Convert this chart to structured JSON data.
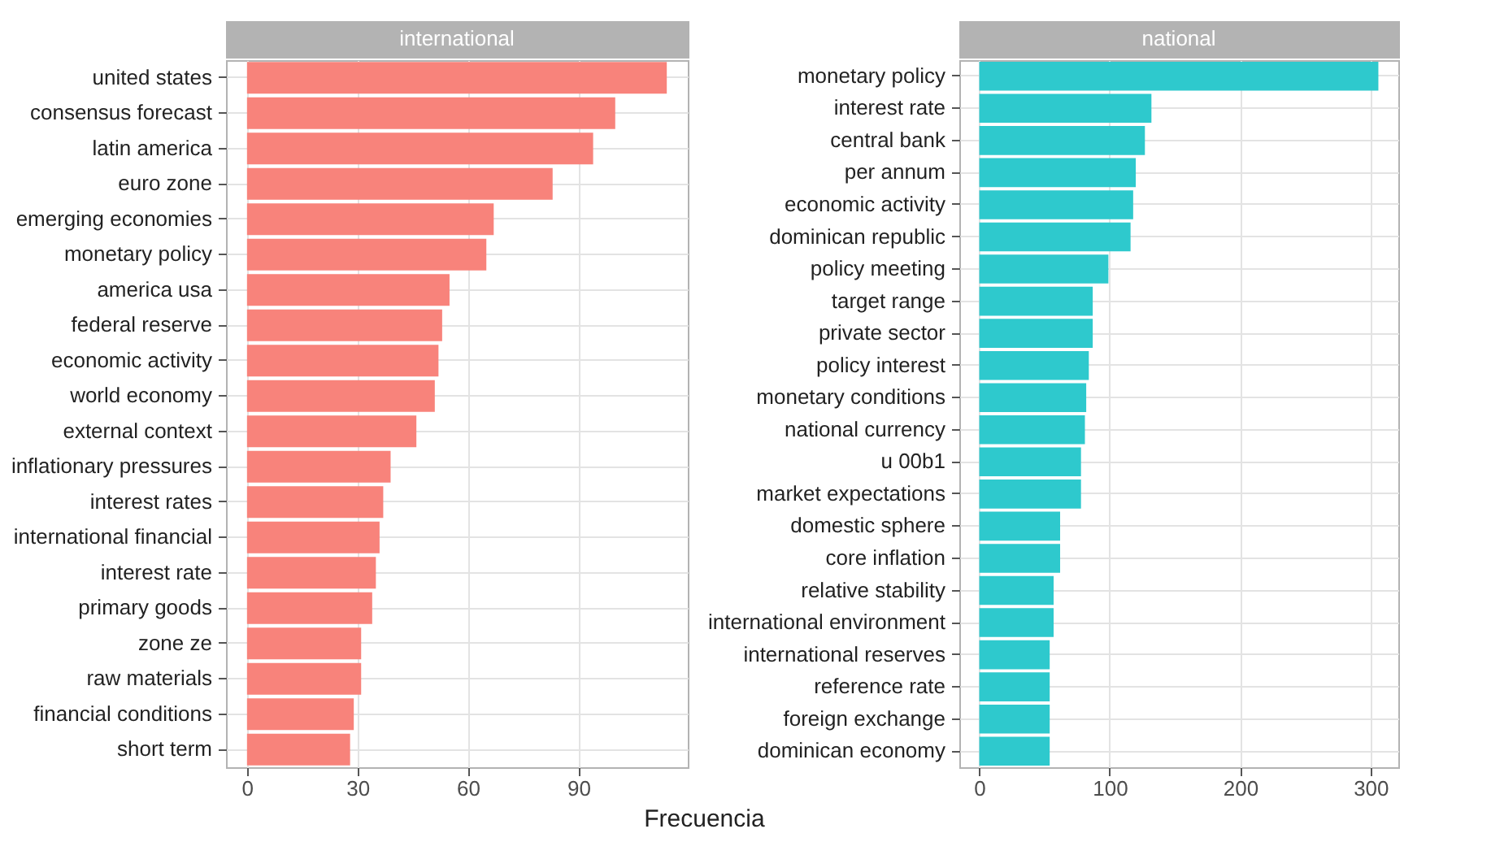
{
  "chart_data": [
    {
      "type": "bar",
      "orientation": "horizontal",
      "title": "international",
      "xlabel": "Frecuencia",
      "categories": [
        "united states",
        "consensus forecast",
        "latin america",
        "euro zone",
        "emerging economies",
        "monetary policy",
        "america usa",
        "federal reserve",
        "economic activity",
        "world economy",
        "external context",
        "inflationary pressures",
        "interest rates",
        "international financial",
        "interest rate",
        "primary goods",
        "zone ze",
        "raw materials",
        "financial conditions",
        "short term"
      ],
      "values": [
        114,
        100,
        94,
        83,
        67,
        65,
        55,
        53,
        52,
        51,
        46,
        39,
        37,
        36,
        35,
        34,
        31,
        31,
        29,
        28
      ],
      "color": "#f8837b",
      "xlim": [
        -5.7,
        119.7
      ],
      "xticks": [
        0,
        30,
        60,
        90
      ],
      "grid": true
    },
    {
      "type": "bar",
      "orientation": "horizontal",
      "title": "national",
      "categories": [
        "monetary policy",
        "interest rate",
        "central bank",
        "per annum",
        "economic activity",
        "dominican republic",
        "policy meeting",
        "target range",
        "private sector",
        "policy interest",
        "monetary conditions",
        "national currency",
        "u 00b1",
        "market expectations",
        "domestic sphere",
        "core inflation",
        "relative stability",
        "international environment",
        "international reserves",
        "reference rate",
        "foreign exchange",
        "dominican economy"
      ],
      "values": [
        306,
        132,
        127,
        120,
        118,
        116,
        99,
        87,
        87,
        84,
        82,
        81,
        78,
        78,
        62,
        62,
        57,
        57,
        54,
        54,
        54,
        54
      ],
      "color": "#2ec9cd",
      "xlim": [
        -15.3,
        321.3
      ],
      "xticks": [
        0,
        100,
        200,
        300
      ],
      "grid": true
    }
  ]
}
